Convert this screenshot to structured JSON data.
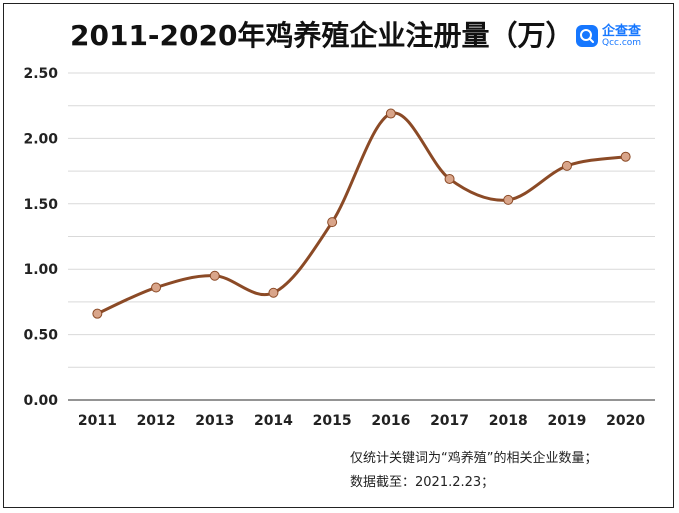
{
  "title": "2011-2020年鸡养殖企业注册量（万）",
  "logo": {
    "cn": "企查查",
    "en": "Qcc.com",
    "icon": "qcc-logo-icon"
  },
  "notes": {
    "line1": "仅统计关键词为“鸡养殖”的相关企业数量；",
    "line2": "数据截至：2021.2.23；"
  },
  "colors": {
    "line": "#8b4a26",
    "marker": "#d9a58a",
    "grid": "#d9d9d9",
    "axis": "#555555",
    "brand": "#1677ff"
  },
  "chart_data": {
    "type": "line",
    "title": "2011-2020年鸡养殖企业注册量（万）",
    "xlabel": "",
    "ylabel": "",
    "categories": [
      "2011",
      "2012",
      "2013",
      "2014",
      "2015",
      "2016",
      "2017",
      "2018",
      "2019",
      "2020"
    ],
    "values": [
      0.66,
      0.86,
      0.95,
      0.82,
      1.36,
      2.19,
      1.69,
      1.53,
      1.79,
      1.86
    ],
    "ylim": [
      0,
      2.5
    ],
    "yticks": [
      "0.00",
      "0.50",
      "1.00",
      "1.50",
      "2.00",
      "2.50"
    ],
    "smooth": true,
    "grid": true,
    "legend": "none"
  }
}
